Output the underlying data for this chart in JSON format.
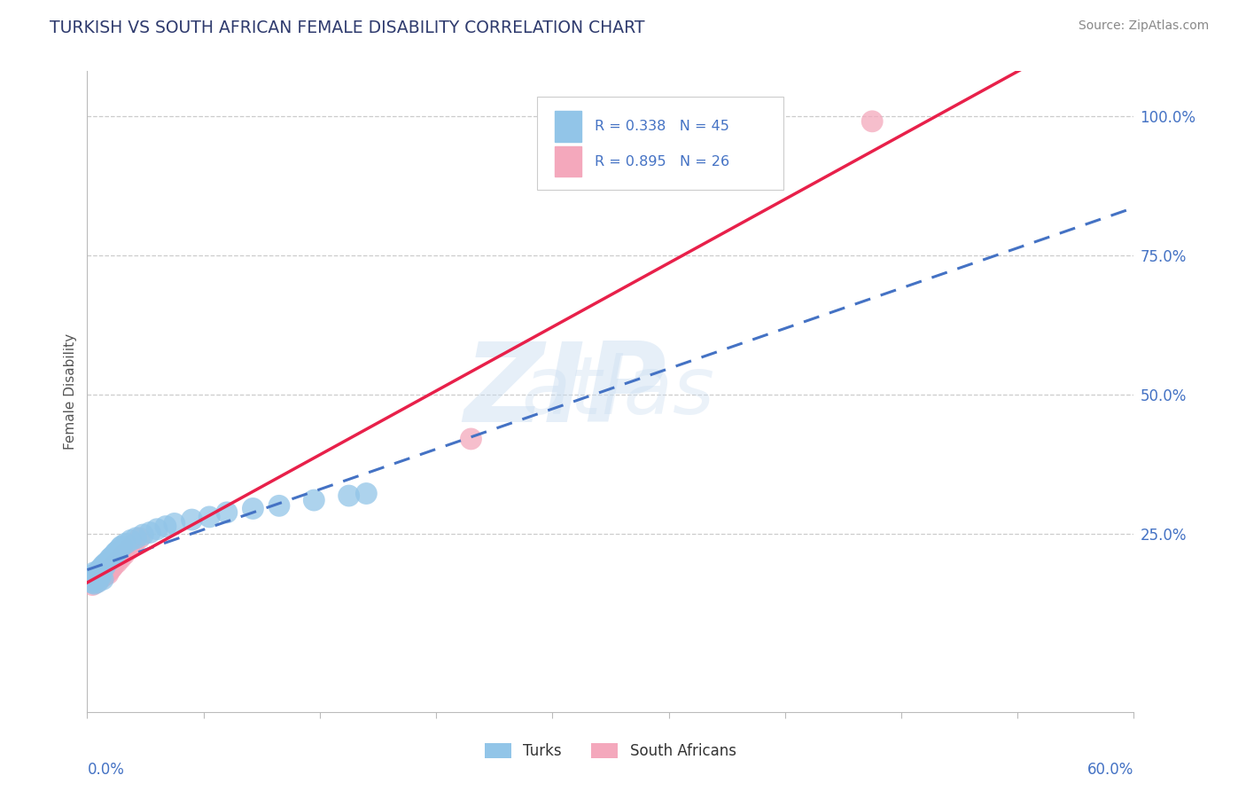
{
  "title": "TURKISH VS SOUTH AFRICAN FEMALE DISABILITY CORRELATION CHART",
  "source": "Source: ZipAtlas.com",
  "ylabel": "Female Disability",
  "y_tick_labels": [
    "100.0%",
    "75.0%",
    "50.0%",
    "25.0%"
  ],
  "y_tick_positions": [
    1.0,
    0.75,
    0.5,
    0.25
  ],
  "xlim": [
    0.0,
    0.6
  ],
  "ylim": [
    -0.07,
    1.08
  ],
  "turks_R": "0.338",
  "turks_N": "45",
  "sa_R": "0.895",
  "sa_N": "26",
  "turks_color": "#92C5E8",
  "sa_color": "#F4A8BC",
  "turks_line_color": "#4472C4",
  "sa_line_color": "#E8204A",
  "background_color": "#FFFFFF",
  "grid_color": "#CCCCCC",
  "label_color": "#4472C4",
  "title_color": "#2F3B6E",
  "source_color": "#888888",
  "turks_x": [
    0.002,
    0.003,
    0.003,
    0.004,
    0.004,
    0.005,
    0.005,
    0.006,
    0.006,
    0.007,
    0.007,
    0.008,
    0.008,
    0.009,
    0.009,
    0.01,
    0.011,
    0.012,
    0.013,
    0.014,
    0.015,
    0.016,
    0.017,
    0.018,
    0.019,
    0.02,
    0.022,
    0.025,
    0.028,
    0.032,
    0.036,
    0.04,
    0.045,
    0.05,
    0.06,
    0.07,
    0.08,
    0.095,
    0.11,
    0.13,
    0.15,
    0.16,
    0.003,
    0.006,
    0.01
  ],
  "turks_y": [
    0.17,
    0.175,
    0.165,
    0.18,
    0.16,
    0.172,
    0.168,
    0.178,
    0.163,
    0.185,
    0.17,
    0.188,
    0.175,
    0.192,
    0.168,
    0.195,
    0.198,
    0.2,
    0.205,
    0.208,
    0.21,
    0.215,
    0.218,
    0.22,
    0.225,
    0.228,
    0.232,
    0.238,
    0.242,
    0.248,
    0.252,
    0.258,
    0.263,
    0.268,
    0.275,
    0.28,
    0.288,
    0.295,
    0.3,
    0.31,
    0.318,
    0.322,
    0.162,
    0.174,
    0.19
  ],
  "sa_x": [
    0.002,
    0.003,
    0.004,
    0.005,
    0.006,
    0.007,
    0.008,
    0.009,
    0.01,
    0.011,
    0.012,
    0.013,
    0.014,
    0.015,
    0.017,
    0.019,
    0.021,
    0.024,
    0.027,
    0.03,
    0.003,
    0.005,
    0.008,
    0.22,
    0.45,
    0.012
  ],
  "sa_y": [
    0.165,
    0.168,
    0.172,
    0.17,
    0.168,
    0.175,
    0.172,
    0.178,
    0.175,
    0.18,
    0.182,
    0.185,
    0.188,
    0.192,
    0.198,
    0.205,
    0.212,
    0.222,
    0.232,
    0.242,
    0.158,
    0.162,
    0.17,
    0.42,
    0.99,
    0.178
  ]
}
